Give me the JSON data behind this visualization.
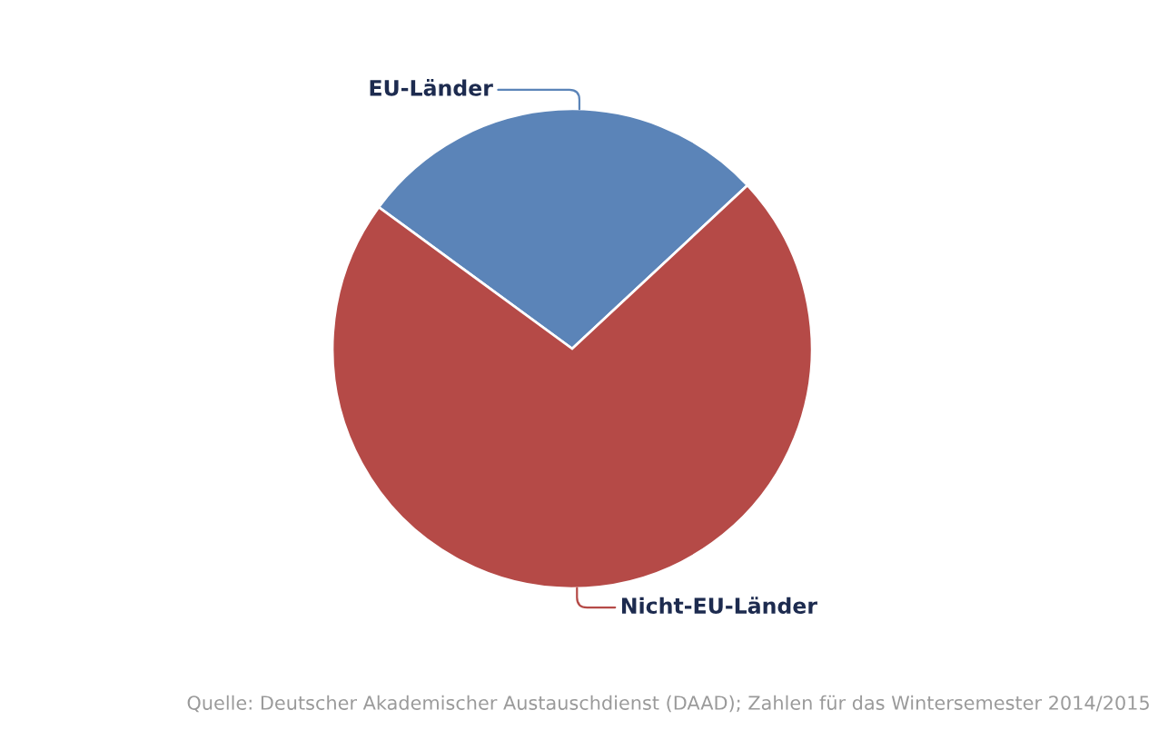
{
  "chart_data": {
    "type": "pie",
    "categories": [
      "EU-Länder",
      "Nicht-EU-Länder"
    ],
    "values": [
      28,
      72
    ],
    "colors": [
      "#5b84b8",
      "#b54a47"
    ],
    "legend": false,
    "annotations": [
      "Quelle: Deutscher Akademischer Austauschdienst (DAAD); Zahlen für das Wintersemester 2014/2015"
    ]
  }
}
